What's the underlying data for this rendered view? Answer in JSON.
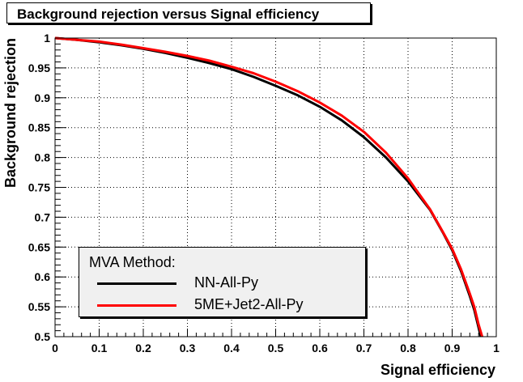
{
  "chart_data": {
    "type": "line",
    "title": "Background rejection versus Signal efficiency",
    "xlabel": "Signal efficiency",
    "ylabel": "Background rejection",
    "xlim": [
      0,
      1
    ],
    "ylim": [
      0.5,
      1
    ],
    "grid": true,
    "x_ticks": [
      "0",
      "0.1",
      "0.2",
      "0.3",
      "0.4",
      "0.5",
      "0.6",
      "0.7",
      "0.8",
      "0.9",
      "1"
    ],
    "y_ticks": [
      "0.5",
      "0.55",
      "0.6",
      "0.65",
      "0.7",
      "0.75",
      "0.8",
      "0.85",
      "0.9",
      "0.95",
      "1"
    ],
    "legend": {
      "title": "MVA Method:",
      "position": "bottom-left"
    },
    "series": [
      {
        "name": "NN-All-Py",
        "color": "#000000",
        "x": [
          0.0,
          0.05,
          0.1,
          0.15,
          0.2,
          0.25,
          0.3,
          0.35,
          0.4,
          0.45,
          0.5,
          0.55,
          0.6,
          0.65,
          0.7,
          0.75,
          0.8,
          0.85,
          0.88,
          0.9,
          0.92,
          0.94,
          0.95,
          0.96,
          0.965
        ],
        "y": [
          1.0,
          0.997,
          0.993,
          0.988,
          0.982,
          0.975,
          0.967,
          0.958,
          0.948,
          0.935,
          0.92,
          0.904,
          0.885,
          0.862,
          0.834,
          0.8,
          0.76,
          0.712,
          0.673,
          0.645,
          0.61,
          0.568,
          0.545,
          0.515,
          0.5
        ]
      },
      {
        "name": "5ME+Jet2-All-Py",
        "color": "#ff0000",
        "x": [
          0.0,
          0.05,
          0.1,
          0.15,
          0.2,
          0.25,
          0.3,
          0.35,
          0.4,
          0.45,
          0.5,
          0.55,
          0.6,
          0.65,
          0.7,
          0.75,
          0.8,
          0.85,
          0.88,
          0.9,
          0.92,
          0.94,
          0.95,
          0.96,
          0.968
        ],
        "y": [
          1.0,
          0.997,
          0.994,
          0.989,
          0.983,
          0.977,
          0.97,
          0.962,
          0.952,
          0.941,
          0.927,
          0.911,
          0.892,
          0.87,
          0.843,
          0.808,
          0.765,
          0.713,
          0.674,
          0.647,
          0.613,
          0.572,
          0.55,
          0.52,
          0.5
        ]
      }
    ]
  }
}
